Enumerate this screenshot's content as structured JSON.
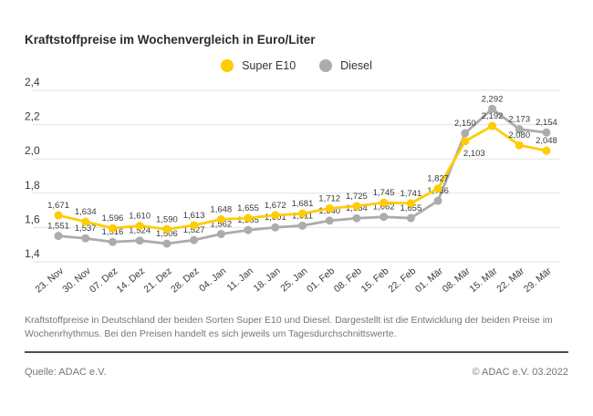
{
  "title": "Kraftstoffpreise im Wochenvergleich in Euro/Liter",
  "chart_data": {
    "type": "line",
    "categories": [
      "23. Nov",
      "30. Nov",
      "07. Dez",
      "14. Dez",
      "21. Dez",
      "28. Dez",
      "04. Jan",
      "11. Jan",
      "18. Jan",
      "25. Jan",
      "01. Feb",
      "08. Feb",
      "15. Feb",
      "22. Feb",
      "01. Mär",
      "08. Mär",
      "15. Mär",
      "22. Mär",
      "29. Mär"
    ],
    "series": [
      {
        "name": "Super E10",
        "color": "#FFCC00",
        "values": [
          1.671,
          1.634,
          1.596,
          1.61,
          1.59,
          1.613,
          1.648,
          1.655,
          1.672,
          1.681,
          1.712,
          1.725,
          1.745,
          1.741,
          1.827,
          2.103,
          2.192,
          2.08,
          2.048
        ]
      },
      {
        "name": "Diesel",
        "color": "#ACACAC",
        "values": [
          1.551,
          1.537,
          1.516,
          1.524,
          1.506,
          1.527,
          1.562,
          1.585,
          1.601,
          1.611,
          1.64,
          1.654,
          1.662,
          1.655,
          1.756,
          2.15,
          2.292,
          2.173,
          2.154
        ]
      }
    ],
    "ylim": [
      1.4,
      2.4
    ],
    "yticks": [
      "2,4",
      "2,2",
      "2,0",
      "1,8",
      "1,6",
      "1,4"
    ],
    "grid": true,
    "legend_position": "top-center",
    "decimal_separator": ",",
    "value_labels": true,
    "label_position_overrides": [
      {
        "series": "Super E10",
        "index": 15,
        "position": "below"
      }
    ],
    "colors": {
      "gridline": "#E2E2E2",
      "axis_text": "#3a3a3a",
      "value_label_text": "#3a3a3a"
    }
  },
  "description": "Kraftstoffpreise in Deutschland der beiden Sorten Super E10 und Diesel. Dargestellt ist die Entwicklung der beiden Preise im Wochenrhythmus. Bei den Preisen handelt es sich jeweils um Tagesdurchschnittswerte.",
  "footer": {
    "source": "Quelle: ADAC e.V.",
    "copyright": "© ADAC e.V. 03.2022"
  }
}
